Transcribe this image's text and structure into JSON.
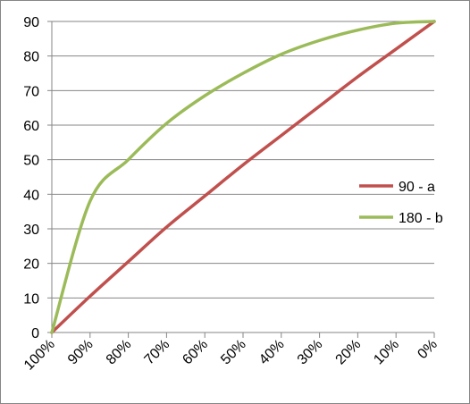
{
  "chart_data": {
    "type": "line",
    "title": "",
    "xlabel": "",
    "ylabel": "",
    "categories": [
      "100%",
      "90%",
      "80%",
      "70%",
      "60%",
      "50%",
      "40%",
      "30%",
      "20%",
      "10%",
      "0%"
    ],
    "x": [
      100,
      90,
      80,
      70,
      60,
      50,
      40,
      30,
      20,
      10,
      0
    ],
    "ylim": [
      0,
      90
    ],
    "yticks": [
      0,
      10,
      20,
      30,
      40,
      50,
      60,
      70,
      80,
      90
    ],
    "grid": true,
    "legend_position": "right",
    "series": [
      {
        "name": "90 - a",
        "color": "#c0504d",
        "values": [
          0,
          10.5,
          20.5,
          30.5,
          39.5,
          48.5,
          57,
          65.5,
          74,
          82,
          90
        ]
      },
      {
        "name": "180 - b",
        "color": "#9bbb59",
        "values": [
          0,
          38,
          50,
          60.5,
          68.5,
          75,
          80.5,
          84.5,
          87.5,
          89.5,
          90
        ]
      }
    ]
  }
}
